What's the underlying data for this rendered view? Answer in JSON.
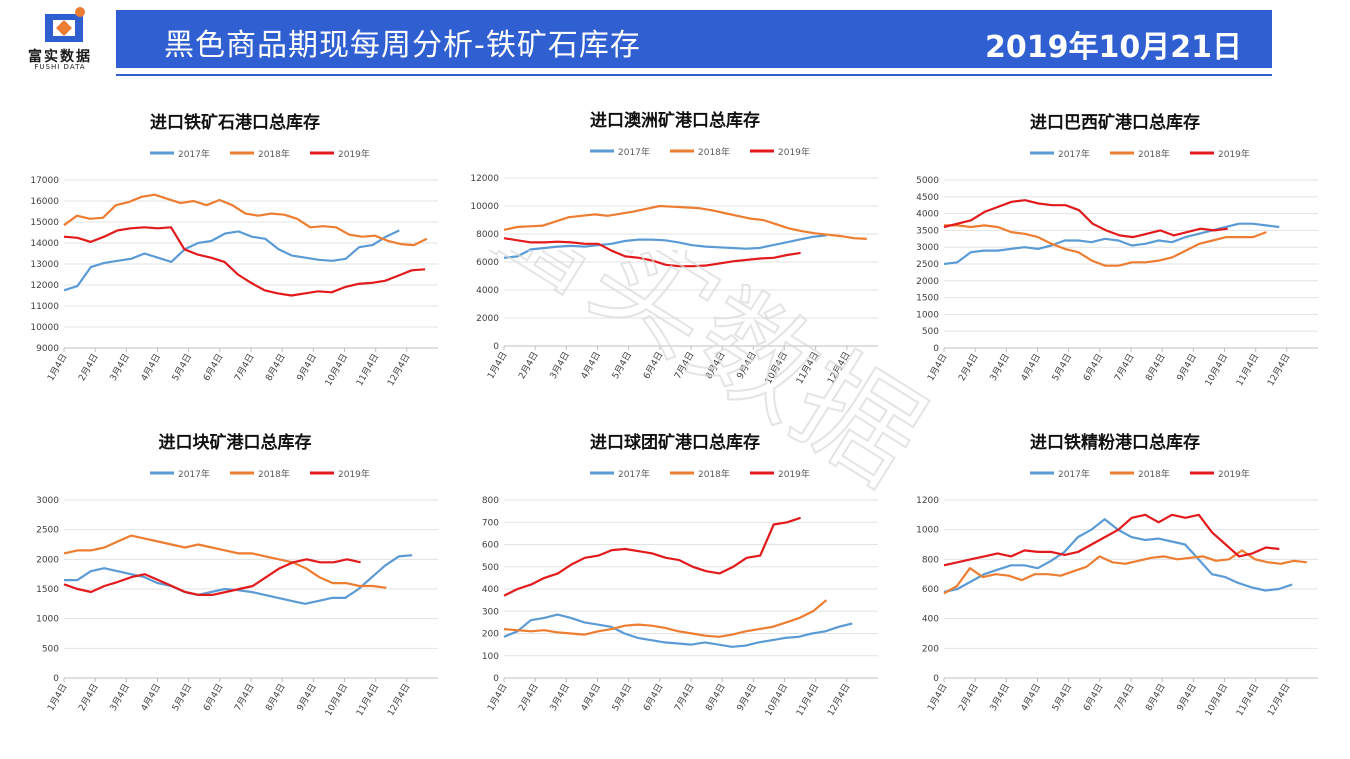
{
  "logo": {
    "name": "富实数据",
    "sub": "FUSHI DATA"
  },
  "header": {
    "title": "黑色商品期现每周分析-铁矿石库存",
    "date": "2019年10月21日"
  },
  "watermark": "富实数据",
  "colors": {
    "banner": "#2f5fd0",
    "s2017": "#5b9bd5",
    "s2018": "#ed7d31",
    "s2019": "#e31a1c"
  },
  "chart_data": [
    {
      "type": "line",
      "title": "进口铁矿石港口总库存",
      "x_ticks": [
        "1月4日",
        "2月4日",
        "3月4日",
        "4月4日",
        "5月4日",
        "6月4日",
        "7月4日",
        "8月4日",
        "9月4日",
        "10月4日",
        "11月4日",
        "12月4日"
      ],
      "ylim": [
        9000,
        17000
      ],
      "yticks": [
        9000,
        10000,
        11000,
        12000,
        13000,
        14000,
        15000,
        16000,
        17000
      ],
      "series": [
        {
          "name": "2017年",
          "values": [
            11750,
            11950,
            12850,
            13050,
            13150,
            13250,
            13500,
            13300,
            13100,
            13700,
            14000,
            14100,
            14450,
            14550,
            14300,
            14200,
            13700,
            13400,
            13300,
            13200,
            13150,
            13250,
            13800,
            13900,
            14300,
            14600
          ]
        },
        {
          "name": "2018年",
          "values": [
            14850,
            15300,
            15150,
            15200,
            15800,
            15950,
            16200,
            16300,
            16100,
            15900,
            16000,
            15800,
            16050,
            15800,
            15400,
            15300,
            15400,
            15350,
            15150,
            14750,
            14800,
            14750,
            14400,
            14300,
            14350,
            14100,
            13950,
            13900,
            14200
          ]
        },
        {
          "name": "2019年",
          "values": [
            14300,
            14250,
            14050,
            14300,
            14600,
            14700,
            14750,
            14700,
            14750,
            13700,
            13450,
            13300,
            13100,
            12500,
            12100,
            11750,
            11600,
            11500,
            11600,
            11700,
            11650,
            11900,
            12050,
            12100,
            12200,
            12450,
            12700,
            12750
          ]
        }
      ]
    },
    {
      "type": "line",
      "title": "进口澳洲矿港口总库存",
      "x_ticks": [
        "1月4日",
        "2月4日",
        "3月4日",
        "4月4日",
        "5月4日",
        "6月4日",
        "7月4日",
        "8月4日",
        "9月4日",
        "10月4日",
        "11月4日",
        "12月4日"
      ],
      "ylim": [
        0,
        12000
      ],
      "yticks": [
        0,
        2000,
        4000,
        6000,
        8000,
        10000,
        12000
      ],
      "series": [
        {
          "name": "2017年",
          "values": [
            6300,
            6400,
            6900,
            7000,
            7100,
            7150,
            7100,
            7200,
            7300,
            7500,
            7600,
            7600,
            7550,
            7400,
            7200,
            7100,
            7050,
            7000,
            6950,
            7000,
            7200,
            7400,
            7600,
            7800,
            7900
          ]
        },
        {
          "name": "2018年",
          "values": [
            8300,
            8500,
            8550,
            8600,
            8900,
            9200,
            9300,
            9400,
            9300,
            9450,
            9600,
            9800,
            10000,
            9950,
            9900,
            9850,
            9700,
            9500,
            9300,
            9100,
            9000,
            8700,
            8400,
            8200,
            8050,
            7950,
            7850,
            7700,
            7650
          ]
        },
        {
          "name": "2019年",
          "values": [
            7700,
            7550,
            7400,
            7400,
            7450,
            7400,
            7300,
            7300,
            6800,
            6400,
            6300,
            6100,
            5800,
            5700,
            5700,
            5750,
            5900,
            6050,
            6150,
            6250,
            6300,
            6500,
            6650
          ]
        }
      ]
    },
    {
      "type": "line",
      "title": "进口巴西矿港口总库存",
      "x_ticks": [
        "1月4日",
        "2月4日",
        "3月4日",
        "4月4日",
        "5月4日",
        "6月4日",
        "7月4日",
        "8月4日",
        "9月4日",
        "10月4日",
        "11月4日",
        "12月4日"
      ],
      "ylim": [
        0,
        5000
      ],
      "yticks": [
        0,
        500,
        1000,
        1500,
        2000,
        2500,
        3000,
        3500,
        4000,
        4500,
        5000
      ],
      "series": [
        {
          "name": "2017年",
          "values": [
            2500,
            2550,
            2850,
            2900,
            2900,
            2950,
            3000,
            2950,
            3050,
            3200,
            3200,
            3150,
            3250,
            3200,
            3050,
            3100,
            3200,
            3150,
            3300,
            3400,
            3500,
            3600,
            3700,
            3700,
            3650,
            3600
          ]
        },
        {
          "name": "2018年",
          "values": [
            3650,
            3650,
            3600,
            3650,
            3600,
            3450,
            3400,
            3300,
            3100,
            2950,
            2850,
            2600,
            2450,
            2450,
            2550,
            2550,
            2600,
            2700,
            2900,
            3100,
            3200,
            3300,
            3300,
            3300,
            3450
          ]
        },
        {
          "name": "2019年",
          "values": [
            3600,
            3700,
            3800,
            4050,
            4200,
            4350,
            4400,
            4300,
            4250,
            4250,
            4100,
            3700,
            3500,
            3350,
            3300,
            3400,
            3500,
            3350,
            3450,
            3550,
            3500,
            3550
          ]
        }
      ]
    },
    {
      "type": "line",
      "title": "进口块矿港口总库存",
      "x_ticks": [
        "1月4日",
        "2月4日",
        "3月4日",
        "4月4日",
        "5月4日",
        "6月4日",
        "7月4日",
        "8月4日",
        "9月4日",
        "10月4日",
        "11月4日",
        "12月4日"
      ],
      "ylim": [
        0,
        3000
      ],
      "yticks": [
        0,
        500,
        1000,
        1500,
        2000,
        2500,
        3000
      ],
      "series": [
        {
          "name": "2017年",
          "values": [
            1650,
            1650,
            1800,
            1850,
            1800,
            1750,
            1700,
            1600,
            1550,
            1450,
            1400,
            1450,
            1500,
            1480,
            1450,
            1400,
            1350,
            1300,
            1250,
            1300,
            1350,
            1350,
            1500,
            1700,
            1900,
            2050,
            2070
          ]
        },
        {
          "name": "2018年",
          "values": [
            2100,
            2150,
            2150,
            2200,
            2300,
            2400,
            2350,
            2300,
            2250,
            2200,
            2250,
            2200,
            2150,
            2100,
            2100,
            2050,
            2000,
            1950,
            1850,
            1700,
            1600,
            1600,
            1550,
            1550,
            1520
          ]
        },
        {
          "name": "2019年",
          "values": [
            1580,
            1500,
            1450,
            1550,
            1620,
            1700,
            1750,
            1650,
            1550,
            1450,
            1400,
            1400,
            1450,
            1500,
            1550,
            1700,
            1850,
            1950,
            2000,
            1950,
            1950,
            2000,
            1950
          ]
        }
      ]
    },
    {
      "type": "line",
      "title": "进口球团矿港口总库存",
      "x_ticks": [
        "1月4日",
        "2月4日",
        "3月4日",
        "4月4日",
        "5月4日",
        "6月4日",
        "7月4日",
        "8月4日",
        "9月4日",
        "10月4日",
        "11月4日",
        "12月4日"
      ],
      "ylim": [
        0,
        800
      ],
      "yticks": [
        0,
        100,
        200,
        300,
        400,
        500,
        600,
        700,
        800
      ],
      "series": [
        {
          "name": "2017年",
          "values": [
            185,
            210,
            260,
            270,
            285,
            270,
            250,
            240,
            230,
            200,
            180,
            170,
            160,
            155,
            150,
            160,
            150,
            140,
            145,
            160,
            170,
            180,
            185,
            200,
            210,
            230,
            245
          ]
        },
        {
          "name": "2018年",
          "values": [
            220,
            215,
            210,
            215,
            205,
            200,
            195,
            210,
            220,
            235,
            240,
            235,
            225,
            210,
            200,
            190,
            185,
            195,
            210,
            220,
            230,
            250,
            270,
            300,
            350
          ]
        },
        {
          "name": "2019年",
          "values": [
            370,
            400,
            420,
            450,
            470,
            510,
            540,
            550,
            575,
            580,
            570,
            560,
            540,
            530,
            500,
            480,
            470,
            500,
            540,
            550,
            690,
            700,
            720
          ]
        }
      ]
    },
    {
      "type": "line",
      "title": "进口铁精粉港口总库存",
      "x_ticks": [
        "1月4日",
        "2月4日",
        "3月4日",
        "4月4日",
        "5月4日",
        "6月4日",
        "7月4日",
        "8月4日",
        "9月4日",
        "10月4日",
        "11月4日",
        "12月4日"
      ],
      "ylim": [
        0,
        1200
      ],
      "yticks": [
        0,
        200,
        400,
        600,
        800,
        1000,
        1200
      ],
      "series": [
        {
          "name": "2017年",
          "values": [
            580,
            600,
            650,
            700,
            730,
            760,
            760,
            740,
            790,
            850,
            950,
            1000,
            1070,
            1000,
            950,
            930,
            940,
            920,
            900,
            800,
            700,
            680,
            640,
            610,
            590,
            600,
            630
          ]
        },
        {
          "name": "2018年",
          "values": [
            570,
            620,
            740,
            680,
            700,
            690,
            660,
            700,
            700,
            690,
            720,
            750,
            820,
            780,
            770,
            790,
            810,
            820,
            800,
            810,
            820,
            790,
            800,
            860,
            800,
            780,
            770,
            790,
            780
          ]
        },
        {
          "name": "2019年",
          "values": [
            760,
            780,
            800,
            820,
            840,
            820,
            860,
            850,
            850,
            830,
            850,
            900,
            950,
            1000,
            1080,
            1100,
            1050,
            1100,
            1080,
            1100,
            980,
            900,
            820,
            840,
            880,
            870
          ]
        }
      ]
    }
  ]
}
